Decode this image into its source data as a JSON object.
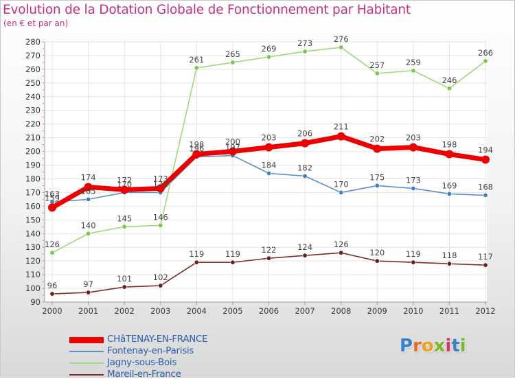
{
  "chart_data": {
    "type": "line",
    "title": "Evolution de la Dotation Globale de Fonctionnement par Habitant",
    "subtitle": "(en € et par an)",
    "x": [
      "2000",
      "2001",
      "2002",
      "2003",
      "2004",
      "2005",
      "2006",
      "2007",
      "2008",
      "2009",
      "2010",
      "2011",
      "2012"
    ],
    "ylim": [
      90,
      280
    ],
    "y_ticks": [
      90,
      100,
      110,
      120,
      130,
      140,
      150,
      160,
      170,
      180,
      190,
      200,
      210,
      220,
      230,
      240,
      250,
      260,
      270,
      280
    ],
    "grid": true,
    "series": [
      {
        "name": "Fontenay-en-Parisis",
        "color": "#5b8ec8",
        "marker": "#3f7fc4",
        "weight": "thin",
        "values": [
          163,
          165,
          170,
          170,
          196,
          197,
          184,
          182,
          170,
          175,
          173,
          169,
          168
        ]
      },
      {
        "name": "Jagny-sous-Bois",
        "color": "#9ed87c",
        "marker": "#78c94a",
        "weight": "thin",
        "values": [
          126,
          140,
          145,
          146,
          261,
          265,
          269,
          273,
          276,
          257,
          259,
          246,
          266
        ]
      },
      {
        "name": "Mareil-en-France",
        "color": "#7a2e2e",
        "marker": "#6b1f1f",
        "weight": "thin",
        "values": [
          96,
          97,
          101,
          102,
          119,
          119,
          122,
          124,
          126,
          120,
          119,
          118,
          117
        ]
      },
      {
        "name": "CHâTENAY-EN-FRANCE",
        "color": "#ee0000",
        "marker": "#ee0000",
        "weight": "thick",
        "values": [
          159,
          174,
          172,
          173,
          198,
          200,
          203,
          206,
          211,
          202,
          203,
          198,
          194
        ]
      }
    ]
  },
  "legend": [
    {
      "label": "CHâTENAY-EN-FRANCE",
      "color": "#ee0000",
      "weight": "thick"
    },
    {
      "label": "Fontenay-en-Parisis",
      "color": "#5b8ec8",
      "weight": "thin"
    },
    {
      "label": "Jagny-sous-Bois",
      "color": "#9ed87c",
      "weight": "thin"
    },
    {
      "label": "Mareil-en-France",
      "color": "#7a2e2e",
      "weight": "thin"
    }
  ],
  "logo": {
    "text": "Proxiti",
    "colors": [
      "#3a7fc8",
      "#e86a1a",
      "#f0a020",
      "#7ab828",
      "#d8336a",
      "#3a7fc8",
      "#7ab828"
    ]
  },
  "colors": {
    "title": "#c5317c",
    "axis_text": "#333333",
    "grid": "#e4e4e4",
    "axis": "#999999",
    "value_label": "#444444"
  }
}
